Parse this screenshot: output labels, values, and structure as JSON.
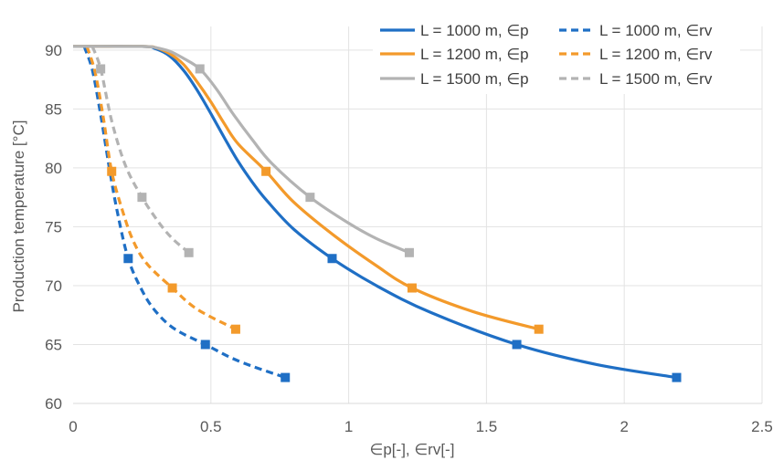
{
  "chart_data": {
    "type": "line",
    "title": "",
    "xlabel": "∈p[-], ∈rv[-]",
    "ylabel": "Production temperature [°C]",
    "xlim": [
      0,
      2.5
    ],
    "ylim": [
      60,
      92
    ],
    "xticks": [
      0,
      0.5,
      1,
      1.5,
      2,
      2.5
    ],
    "xtick_labels": [
      "0",
      "0.5",
      "1",
      "1.5",
      "2",
      "2.5"
    ],
    "yticks": [
      60,
      65,
      70,
      75,
      80,
      85,
      90
    ],
    "ytick_labels": [
      "60",
      "65",
      "70",
      "75",
      "80",
      "85",
      "90"
    ],
    "grid": true,
    "legend_position": "top-right",
    "colors": {
      "L1000": "#1f6fc5",
      "L1200": "#f39a2b",
      "L1500": "#b3b3b3"
    },
    "series": [
      {
        "name": "L = 1000 m, ∈p",
        "color": "#1f6fc5",
        "dash": "solid",
        "x": [
          0.0,
          0.25,
          0.3,
          0.35,
          0.4,
          0.45,
          0.5,
          0.55,
          0.6,
          0.65,
          0.7,
          0.8,
          0.94,
          1.1,
          1.3,
          1.61,
          1.9,
          2.19
        ],
        "y": [
          90.3,
          90.3,
          90.1,
          89.5,
          88.3,
          86.6,
          84.6,
          82.5,
          80.5,
          78.8,
          77.3,
          74.8,
          72.3,
          70.0,
          67.7,
          65.0,
          63.3,
          62.2
        ],
        "markers_x": [
          0.94,
          1.61,
          2.19
        ],
        "markers_y": [
          72.3,
          65.0,
          62.2
        ]
      },
      {
        "name": "L = 1000 m, ∈rv",
        "color": "#1f6fc5",
        "dash": "dashed",
        "x": [
          0.04,
          0.07,
          0.1,
          0.13,
          0.16,
          0.2,
          0.25,
          0.3,
          0.37,
          0.48,
          0.6,
          0.77
        ],
        "y": [
          90.3,
          88.3,
          84.5,
          80.2,
          76.3,
          72.3,
          69.6,
          67.8,
          66.3,
          65.0,
          63.6,
          62.2
        ],
        "markers_x": [
          0.2,
          0.48,
          0.77
        ],
        "markers_y": [
          72.3,
          65.0,
          62.2
        ]
      },
      {
        "name": "L = 1200 m, ∈p",
        "color": "#f39a2b",
        "dash": "solid",
        "x": [
          0.0,
          0.25,
          0.3,
          0.35,
          0.4,
          0.45,
          0.5,
          0.55,
          0.6,
          0.7,
          0.8,
          0.95,
          1.1,
          1.23,
          1.45,
          1.69
        ],
        "y": [
          90.3,
          90.3,
          90.2,
          89.7,
          88.8,
          87.3,
          85.6,
          83.7,
          82.0,
          79.7,
          77.1,
          74.2,
          71.7,
          69.8,
          67.8,
          66.3
        ],
        "markers_x": [
          0.7,
          1.23,
          1.69
        ],
        "markers_y": [
          79.7,
          69.8,
          66.3
        ]
      },
      {
        "name": "L = 1200 m, ∈rv",
        "color": "#f39a2b",
        "dash": "dashed",
        "x": [
          0.05,
          0.08,
          0.11,
          0.14,
          0.18,
          0.22,
          0.27,
          0.36,
          0.45,
          0.59
        ],
        "y": [
          90.3,
          88.1,
          84.2,
          79.7,
          76.3,
          73.7,
          71.8,
          69.8,
          68.0,
          66.3
        ],
        "markers_x": [
          0.14,
          0.36,
          0.59
        ],
        "markers_y": [
          79.7,
          69.8,
          66.3
        ]
      },
      {
        "name": "L = 1500 m, ∈p",
        "color": "#b3b3b3",
        "dash": "solid",
        "x": [
          0.0,
          0.25,
          0.3,
          0.35,
          0.4,
          0.46,
          0.52,
          0.58,
          0.65,
          0.72,
          0.86,
          1.0,
          1.1,
          1.22
        ],
        "y": [
          90.3,
          90.3,
          90.2,
          89.9,
          89.3,
          88.4,
          86.7,
          84.6,
          82.4,
          80.4,
          77.5,
          75.3,
          74.0,
          72.8
        ],
        "markers_x": [
          0.46,
          0.86,
          1.22
        ],
        "markers_y": [
          88.4,
          77.5,
          72.8
        ]
      },
      {
        "name": "L = 1500 m, ∈rv",
        "color": "#b3b3b3",
        "dash": "dashed",
        "x": [
          0.07,
          0.1,
          0.14,
          0.19,
          0.25,
          0.31,
          0.36,
          0.42
        ],
        "y": [
          90.3,
          88.4,
          84.0,
          80.2,
          77.5,
          75.4,
          74.0,
          72.8
        ],
        "markers_x": [
          0.1,
          0.25,
          0.42
        ],
        "markers_y": [
          88.4,
          77.5,
          72.8
        ]
      }
    ],
    "legend_order": [
      0,
      1,
      2,
      3,
      4,
      5
    ]
  }
}
